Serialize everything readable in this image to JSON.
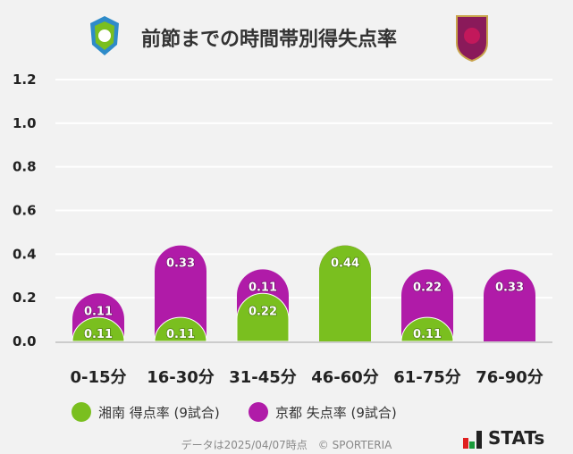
{
  "chart_data": {
    "type": "bar",
    "stacked": true,
    "title": "前節までの時間帯別得失点率",
    "categories": [
      "0-15分",
      "16-30分",
      "31-45分",
      "46-60分",
      "61-75分",
      "76-90分"
    ],
    "series": [
      {
        "name": "湘南 得点率 (9試合)",
        "color": "#7abf1f",
        "values": [
          0.11,
          0.11,
          0.22,
          0.44,
          0.11,
          0
        ]
      },
      {
        "name": "京都 失点率 (9試合)",
        "color": "#b01ba8",
        "values": [
          0.11,
          0.33,
          0.11,
          0,
          0.22,
          0.33
        ]
      }
    ],
    "yticks": [
      "0.0",
      "0.2",
      "0.4",
      "0.6",
      "0.8",
      "1.0",
      "1.2"
    ],
    "ylim": [
      0,
      1.2
    ],
    "grid": true,
    "legend": "bottom"
  },
  "footer": "データは2025/04/07時点　© SPORTERIA",
  "brand": "STATs",
  "logos": {
    "left": "湘南ベルマーレ",
    "right": "KYOTO SANGA"
  }
}
